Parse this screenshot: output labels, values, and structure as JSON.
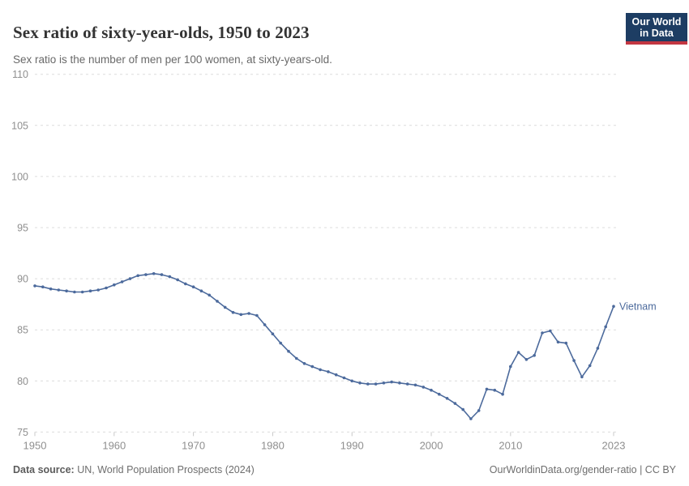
{
  "header": {
    "title": "Sex ratio of sixty-year-olds, 1950 to 2023",
    "subtitle": "Sex ratio is the number of men per 100 women, at sixty-years-old."
  },
  "branding": {
    "logo_line1": "Our World",
    "logo_line2": "in Data",
    "logo_background": "#1d3d63",
    "logo_stripe_color": "#c23641"
  },
  "chart_data": {
    "type": "line",
    "title": "Sex ratio of sixty-year-olds, 1950 to 2023",
    "subtitle": "Sex ratio is the number of men per 100 women, at sixty-years-old.",
    "xlabel": "",
    "ylabel": "",
    "xlim": [
      1950,
      2023
    ],
    "ylim": [
      75,
      110
    ],
    "x_ticks": [
      1950,
      1960,
      1970,
      1980,
      1990,
      2000,
      2010,
      2023
    ],
    "y_ticks": [
      75,
      80,
      85,
      90,
      95,
      100,
      105,
      110
    ],
    "grid": "horizontal-dashed",
    "legend_position": "end-of-line-label",
    "series": [
      {
        "name": "Vietnam",
        "color": "#4C6A9C",
        "x": [
          1950,
          1951,
          1952,
          1953,
          1954,
          1955,
          1956,
          1957,
          1958,
          1959,
          1960,
          1961,
          1962,
          1963,
          1964,
          1965,
          1966,
          1967,
          1968,
          1969,
          1970,
          1971,
          1972,
          1973,
          1974,
          1975,
          1976,
          1977,
          1978,
          1979,
          1980,
          1981,
          1982,
          1983,
          1984,
          1985,
          1986,
          1987,
          1988,
          1989,
          1990,
          1991,
          1992,
          1993,
          1994,
          1995,
          1996,
          1997,
          1998,
          1999,
          2000,
          2001,
          2002,
          2003,
          2004,
          2005,
          2006,
          2007,
          2008,
          2009,
          2010,
          2011,
          2012,
          2013,
          2014,
          2015,
          2016,
          2017,
          2018,
          2019,
          2020,
          2021,
          2022,
          2023
        ],
        "values": [
          89.3,
          89.2,
          89.0,
          88.9,
          88.8,
          88.7,
          88.7,
          88.8,
          88.9,
          89.1,
          89.4,
          89.7,
          90.0,
          90.3,
          90.4,
          90.5,
          90.4,
          90.2,
          89.9,
          89.5,
          89.2,
          88.8,
          88.4,
          87.8,
          87.2,
          86.7,
          86.5,
          86.6,
          86.4,
          85.5,
          84.6,
          83.7,
          82.9,
          82.2,
          81.7,
          81.4,
          81.1,
          80.9,
          80.6,
          80.3,
          80.0,
          79.8,
          79.7,
          79.7,
          79.8,
          79.9,
          79.8,
          79.7,
          79.6,
          79.4,
          79.1,
          78.7,
          78.3,
          77.8,
          77.2,
          76.3,
          77.1,
          79.2,
          79.1,
          78.7,
          81.4,
          82.8,
          82.1,
          82.5,
          84.7,
          84.9,
          83.8,
          83.7,
          82.0,
          80.4,
          81.5,
          83.2,
          85.3,
          87.3
        ]
      }
    ],
    "entity_label": "Vietnam"
  },
  "colors": {
    "line": "#4C6A9C",
    "gridline": "#dcdcdc",
    "axis_label": "#8f8f8f",
    "tick_mark": "#c8c8c8"
  },
  "footer": {
    "datasource_label": "Data source:",
    "datasource_text": " UN, World Population Prospects (2024)",
    "attribution": "OurWorldinData.org/gender-ratio | CC BY"
  }
}
